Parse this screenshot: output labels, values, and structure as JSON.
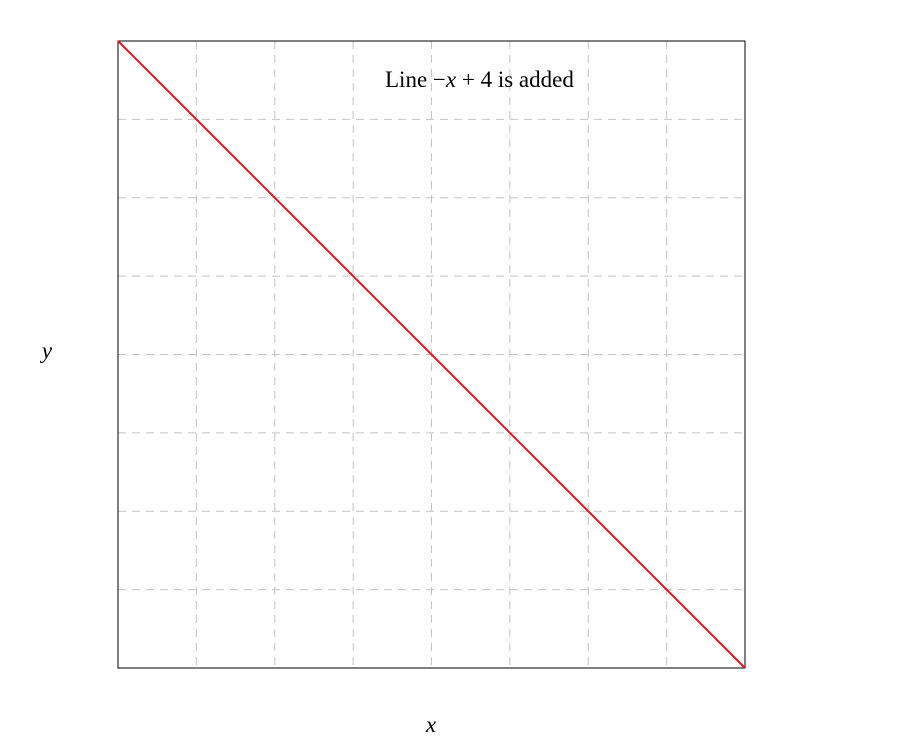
{
  "chart_data": {
    "type": "line",
    "annotation": {
      "prefix": "Line ",
      "math_sign": "−",
      "math_var": "x",
      "math_rest": " + 4",
      "suffix": " is added"
    },
    "xlabel": "x",
    "ylabel": "y",
    "xlim": [
      0,
      4
    ],
    "ylim": [
      0,
      4
    ],
    "grid": true,
    "series": [
      {
        "x": [
          0,
          4
        ],
        "y": [
          4,
          0
        ],
        "color": "#e8141b"
      }
    ]
  }
}
